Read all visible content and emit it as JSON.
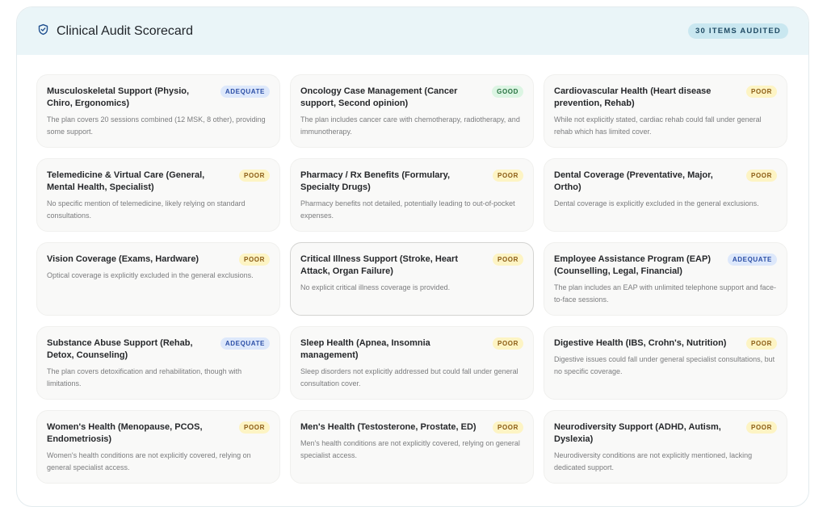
{
  "header": {
    "title": "Clinical Audit Scorecard",
    "icon": "shield-check-icon",
    "count_badge": "30 ITEMS AUDITED"
  },
  "colors": {
    "header_bg": "#eaf5f8",
    "poor": "#fdf4c4",
    "adequate": "#dde8fb",
    "good": "#dcf5e3"
  },
  "items": [
    {
      "title": "Musculoskeletal Support (Physio, Chiro, Ergonomics)",
      "status": "ADEQUATE",
      "description": "The plan covers 20 sessions combined (12 MSK, 8 other), providing some support."
    },
    {
      "title": "Oncology Case Management (Cancer support, Second opinion)",
      "status": "GOOD",
      "description": "The plan includes cancer care with chemotherapy, radiotherapy, and immunotherapy."
    },
    {
      "title": "Cardiovascular Health (Heart disease prevention, Rehab)",
      "status": "POOR",
      "description": "While not explicitly stated, cardiac rehab could fall under general rehab which has limited cover."
    },
    {
      "title": "Telemedicine & Virtual Care (General, Mental Health, Specialist)",
      "status": "POOR",
      "description": "No specific mention of telemedicine, likely relying on standard consultations."
    },
    {
      "title": "Pharmacy / Rx Benefits (Formulary, Specialty Drugs)",
      "status": "POOR",
      "description": "Pharmacy benefits not detailed, potentially leading to out-of-pocket expenses."
    },
    {
      "title": "Dental Coverage (Preventative, Major, Ortho)",
      "status": "POOR",
      "description": "Dental coverage is explicitly excluded in the general exclusions."
    },
    {
      "title": "Vision Coverage (Exams, Hardware)",
      "status": "POOR",
      "description": "Optical coverage is explicitly excluded in the general exclusions."
    },
    {
      "title": "Critical Illness Support (Stroke, Heart Attack, Organ Failure)",
      "status": "POOR",
      "description": "No explicit critical illness coverage is provided."
    },
    {
      "title": "Employee Assistance Program (EAP) (Counselling, Legal, Financial)",
      "status": "ADEQUATE",
      "description": "The plan includes an EAP with unlimited telephone support and face-to-face sessions."
    },
    {
      "title": "Substance Abuse Support (Rehab, Detox, Counseling)",
      "status": "ADEQUATE",
      "description": "The plan covers detoxification and rehabilitation, though with limitations."
    },
    {
      "title": "Sleep Health (Apnea, Insomnia management)",
      "status": "POOR",
      "description": "Sleep disorders not explicitly addressed but could fall under general consultation cover."
    },
    {
      "title": "Digestive Health (IBS, Crohn's, Nutrition)",
      "status": "POOR",
      "description": "Digestive issues could fall under general specialist consultations, but no specific coverage."
    },
    {
      "title": "Women's Health (Menopause, PCOS, Endometriosis)",
      "status": "POOR",
      "description": "Women's health conditions are not explicitly covered, relying on general specialist access."
    },
    {
      "title": "Men's Health (Testosterone, Prostate, ED)",
      "status": "POOR",
      "description": "Men's health conditions are not explicitly covered, relying on general specialist access."
    },
    {
      "title": "Neurodiversity Support (ADHD, Autism, Dyslexia)",
      "status": "POOR",
      "description": "Neurodiversity conditions are not explicitly mentioned, lacking dedicated support."
    }
  ]
}
